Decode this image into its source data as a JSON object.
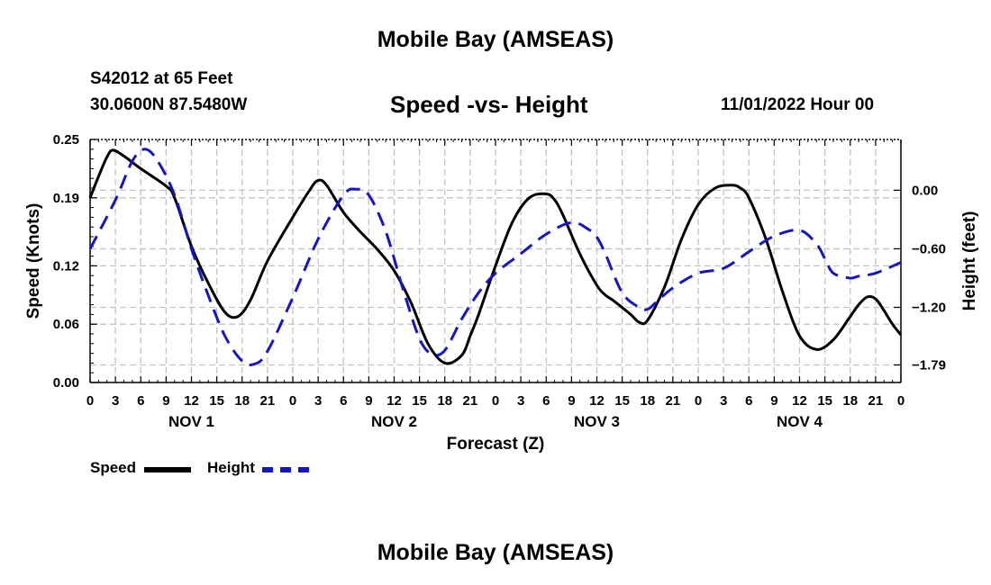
{
  "page": {
    "title_top": "Mobile Bay (AMSEAS)",
    "title_bottom": "Mobile Bay (AMSEAS)",
    "station": "S42012 at 65 Feet",
    "coords": "30.0600N  87.5480W",
    "subtitle": "Speed -vs- Height",
    "datetime": "11/01/2022 Hour 00"
  },
  "legend": {
    "speed_label": "Speed",
    "height_label": "Height",
    "speed_color": "#000000",
    "height_color": "#1515c8"
  },
  "chart_data": {
    "type": "line",
    "title": "Speed -vs- Height",
    "xlabel": "Forecast (Z)",
    "ylabel": "Speed (Knots)",
    "y2label": "Height (feet)",
    "xlim": [
      0,
      96
    ],
    "ylim": [
      0,
      0.25
    ],
    "y2lim": [
      -1.97,
      0.52
    ],
    "x_ticks": [
      0,
      3,
      6,
      9,
      12,
      15,
      18,
      21,
      24,
      27,
      30,
      33,
      36,
      39,
      42,
      45,
      48,
      51,
      54,
      57,
      60,
      63,
      66,
      69,
      72,
      75,
      78,
      81,
      84,
      87,
      90,
      93,
      96
    ],
    "x_tick_labels": [
      "0",
      "3",
      "6",
      "9",
      "12",
      "15",
      "18",
      "21",
      "0",
      "3",
      "6",
      "9",
      "12",
      "15",
      "18",
      "21",
      "0",
      "3",
      "6",
      "9",
      "12",
      "15",
      "18",
      "21",
      "0",
      "3",
      "6",
      "9",
      "12",
      "15",
      "18",
      "21",
      "0"
    ],
    "day_labels": [
      {
        "x": 12,
        "label": "NOV 1"
      },
      {
        "x": 36,
        "label": "NOV 2"
      },
      {
        "x": 60,
        "label": "NOV 3"
      },
      {
        "x": 84,
        "label": "NOV 4"
      }
    ],
    "y_ticks": [
      0.0,
      0.06,
      0.12,
      0.19,
      0.25
    ],
    "y_tick_labels": [
      "0.00",
      "0.06",
      "0.12",
      "0.19",
      "0.25"
    ],
    "y2_ticks": [
      0.0,
      -0.6,
      -1.2,
      -1.79
    ],
    "y2_tick_labels": [
      "0.00",
      "−0.60",
      "−1.20",
      "−1.79"
    ],
    "grid": true,
    "series": [
      {
        "name": "Speed",
        "axis": "left",
        "style": "solid",
        "x": [
          0,
          1,
          2,
          2.7,
          4,
          6,
          9,
          10,
          12,
          14,
          16,
          17.5,
          19,
          21,
          24,
          26,
          27,
          28,
          30,
          32,
          34,
          36,
          38,
          40,
          42,
          44,
          45,
          46,
          48,
          50,
          52,
          54,
          55,
          56,
          58,
          60,
          61,
          62,
          64,
          65,
          66,
          68,
          70,
          72,
          74,
          76,
          77,
          78,
          80,
          82,
          84,
          86,
          88,
          90,
          91,
          92,
          93,
          94,
          95,
          96
        ],
        "values": [
          0.19,
          0.212,
          0.232,
          0.239,
          0.233,
          0.22,
          0.202,
          0.19,
          0.14,
          0.102,
          0.072,
          0.068,
          0.085,
          0.125,
          0.17,
          0.198,
          0.208,
          0.203,
          0.175,
          0.155,
          0.137,
          0.115,
          0.082,
          0.04,
          0.02,
          0.028,
          0.048,
          0.07,
          0.12,
          0.165,
          0.19,
          0.194,
          0.188,
          0.172,
          0.132,
          0.1,
          0.09,
          0.084,
          0.07,
          0.062,
          0.064,
          0.098,
          0.147,
          0.183,
          0.2,
          0.203,
          0.2,
          0.19,
          0.148,
          0.093,
          0.048,
          0.034,
          0.044,
          0.068,
          0.08,
          0.088,
          0.086,
          0.074,
          0.06,
          0.049
        ]
      },
      {
        "name": "Height",
        "axis": "right",
        "style": "dashed",
        "x": [
          0,
          3,
          5,
          6.5,
          8,
          10,
          12,
          14,
          16,
          18,
          19.5,
          21,
          24,
          27,
          30,
          31.5,
          33,
          35,
          37,
          39,
          40.5,
          42,
          44,
          46,
          48,
          51,
          54,
          57,
          59,
          60,
          61,
          63,
          65,
          66,
          67,
          69,
          72,
          75,
          78,
          81,
          84,
          86,
          87,
          88,
          90,
          91,
          93,
          96
        ],
        "values": [
          -0.6,
          -0.1,
          0.3,
          0.42,
          0.3,
          -0.05,
          -0.6,
          -1.08,
          -1.5,
          -1.75,
          -1.78,
          -1.65,
          -1.1,
          -0.5,
          -0.05,
          0.01,
          -0.05,
          -0.42,
          -1.0,
          -1.52,
          -1.68,
          -1.64,
          -1.32,
          -1.05,
          -0.85,
          -0.65,
          -0.45,
          -0.33,
          -0.4,
          -0.48,
          -0.65,
          -1.05,
          -1.2,
          -1.22,
          -1.15,
          -1.0,
          -0.85,
          -0.8,
          -0.63,
          -0.47,
          -0.41,
          -0.55,
          -0.7,
          -0.85,
          -0.9,
          -0.88,
          -0.85,
          -0.74
        ]
      }
    ]
  }
}
